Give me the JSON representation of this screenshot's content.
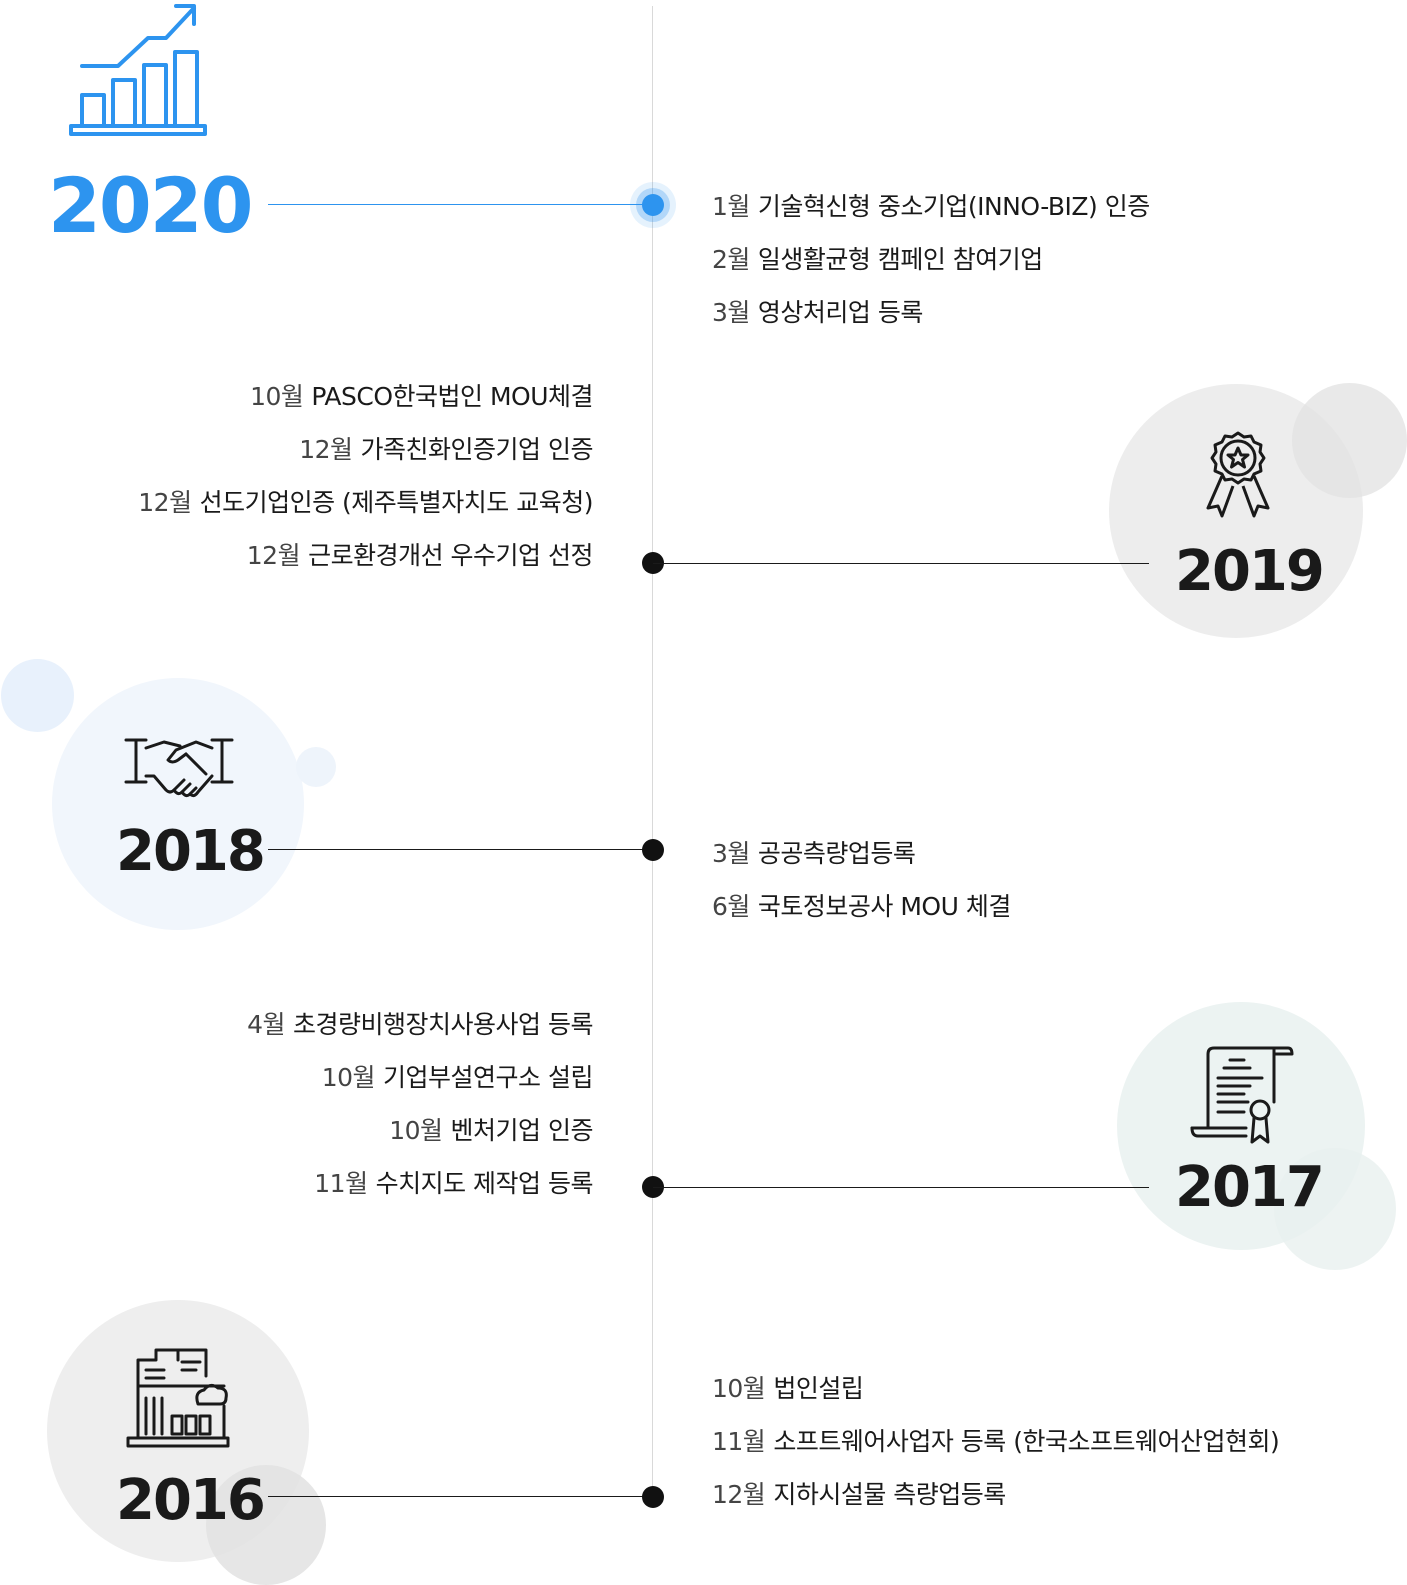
{
  "colors": {
    "accent": "#2d94ef",
    "line": "#1a1a1a",
    "timeline": "#d9d9d9",
    "circle_gray": "#eeeeee",
    "circle_blue": "#f1f6fc",
    "circle_teal": "#ecf3f2"
  },
  "years": {
    "y2020": {
      "year": "2020",
      "icon": "growth-chart-icon",
      "events": [
        {
          "month": "1월",
          "text": "기술혁신형 중소기업(INNO-BIZ) 인증"
        },
        {
          "month": "2월",
          "text": "일생활균형 캠페인 참여기업"
        },
        {
          "month": "3월",
          "text": "영상처리업 등록"
        }
      ]
    },
    "y2019": {
      "year": "2019",
      "icon": "award-badge-icon",
      "events": [
        {
          "month": "10월",
          "text": "PASCO한국법인 MOU체결"
        },
        {
          "month": "12월",
          "text": "가족친화인증기업 인증"
        },
        {
          "month": "12월",
          "text": "선도기업인증 (제주특별자치도 교육청)"
        },
        {
          "month": "12월",
          "text": "근로환경개선 우수기업 선정"
        }
      ]
    },
    "y2018": {
      "year": "2018",
      "icon": "handshake-icon",
      "events": [
        {
          "month": "3월",
          "text": "공공측량업등록"
        },
        {
          "month": "6월",
          "text": "국토정보공사 MOU 체결"
        }
      ]
    },
    "y2017": {
      "year": "2017",
      "icon": "certificate-scroll-icon",
      "events": [
        {
          "month": "4월",
          "text": "초경량비행장치사용사업 등록"
        },
        {
          "month": "10월",
          "text": "기업부설연구소 설립"
        },
        {
          "month": "10월",
          "text": "벤처기업 인증"
        },
        {
          "month": "11월",
          "text": "수치지도 제작업 등록"
        }
      ]
    },
    "y2016": {
      "year": "2016",
      "icon": "office-building-icon",
      "events": [
        {
          "month": "10월",
          "text": "법인설립"
        },
        {
          "month": "11월",
          "text": "소프트웨어사업자 등록 (한국소프트웨어산업현회)"
        },
        {
          "month": "12월",
          "text": "지하시설물 측량업등록"
        }
      ]
    }
  }
}
